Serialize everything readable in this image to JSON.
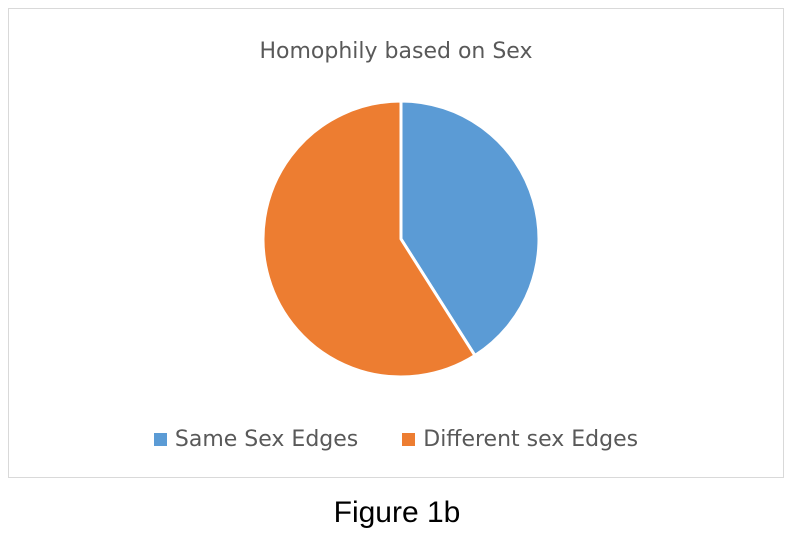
{
  "chart_data": {
    "type": "pie",
    "title": "Homophily based on Sex",
    "categories": [
      "Same Sex Edges",
      "Different sex Edges"
    ],
    "values": [
      41,
      59
    ],
    "colors": [
      "#5b9bd5",
      "#ed7d31"
    ],
    "legend_position": "bottom"
  },
  "caption": "Figure 1b"
}
